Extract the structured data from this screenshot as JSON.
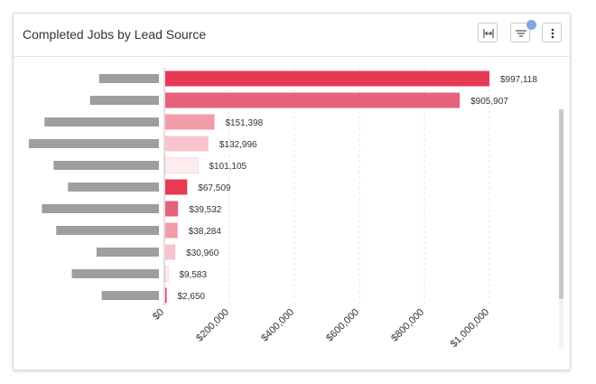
{
  "widget": {
    "title": "Completed Jobs by Lead Source",
    "controls": {
      "fit_width_icon": "fit-width-icon",
      "filter_icon": "filter-icon",
      "more_icon": "more-vertical-icon"
    },
    "filter_badge_color": "#7FA7E0"
  },
  "chart_data": {
    "type": "bar",
    "orientation": "horizontal",
    "title": "",
    "xlabel": "",
    "ylabel": "",
    "category_labels_redacted": true,
    "values": [
      997118,
      905907,
      151398,
      132996,
      101105,
      67509,
      39532,
      38284,
      30960,
      9583,
      2650
    ],
    "value_labels": [
      "$997,118",
      "$905,907",
      "$151,398",
      "$132,996",
      "$101,105",
      "$67,509",
      "$39,532",
      "$38,284",
      "$30,960",
      "$9,583",
      "$2,650"
    ],
    "colors": [
      "#E63A55",
      "#E6627A",
      "#F19CA8",
      "#F8C5CC",
      "#FDEDEF",
      "#E63A55",
      "#E6627A",
      "#F19CA8",
      "#F8C5CC",
      "#FDEDEF",
      "#E63A55"
    ],
    "redacted_label_fraction": [
      0.46,
      0.53,
      0.88,
      1.0,
      0.81,
      0.7,
      0.9,
      0.79,
      0.48,
      0.67,
      0.44
    ],
    "xlim": [
      0,
      1000000
    ],
    "xticks": [
      0,
      200000,
      400000,
      600000,
      800000,
      1000000
    ],
    "xtick_labels": [
      "$0",
      "$200,000",
      "$400,000",
      "$600,000",
      "$800,000",
      "$1,000,000"
    ],
    "grid": true
  }
}
